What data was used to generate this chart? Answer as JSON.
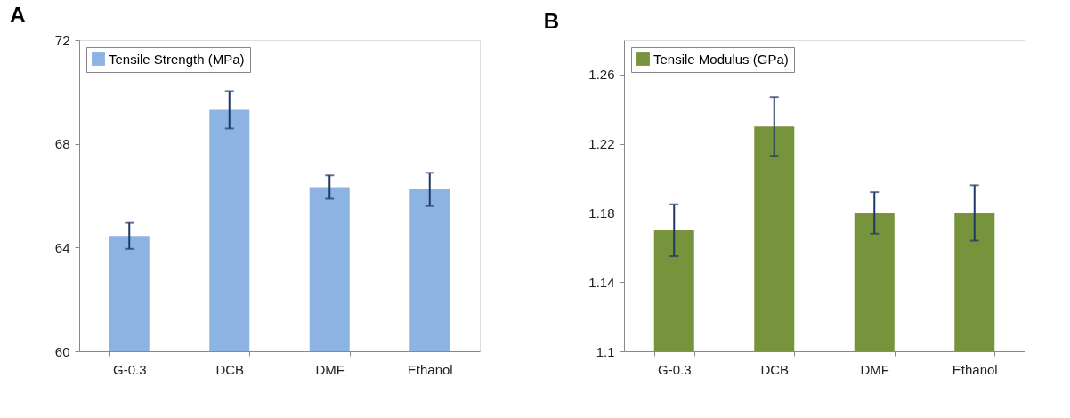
{
  "chart_data": [
    {
      "type": "bar",
      "title": "A",
      "categories": [
        "G-0.3",
        "DCB",
        "DMF",
        "Ethanol"
      ],
      "series": [
        {
          "name": "Tensile Strength (MPa)",
          "color": "#8db3e2",
          "values": [
            64.45,
            69.31,
            66.33,
            66.24
          ],
          "errors": [
            0.5,
            0.72,
            0.45,
            0.64
          ]
        }
      ],
      "ylim": [
        60,
        72
      ],
      "yticks": [
        60,
        64,
        68,
        72
      ],
      "grid": false,
      "legend": "top left"
    },
    {
      "type": "bar",
      "title": "B",
      "categories": [
        "G-0.3",
        "DCB",
        "DMF",
        "Ethanol"
      ],
      "series": [
        {
          "name": "Tensile Modulus (GPa)",
          "color": "#77933c",
          "values": [
            1.17,
            1.23,
            1.18,
            1.18
          ],
          "errors": [
            0.015,
            0.017,
            0.012,
            0.016
          ]
        }
      ],
      "ylim": [
        1.1,
        1.28
      ],
      "yticks": [
        1.1,
        1.14,
        1.18,
        1.22,
        1.26
      ],
      "grid": false,
      "legend": "top left"
    }
  ]
}
